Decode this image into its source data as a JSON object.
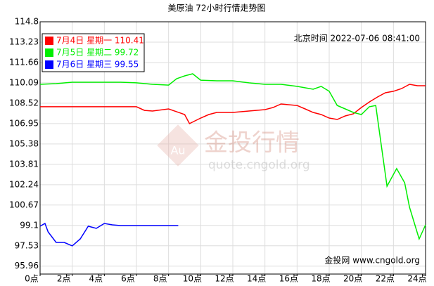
{
  "chart_data": {
    "type": "line",
    "title": "美原油 72小时行情走势图",
    "subtitle": "北京时间 2022-07-06 08:41:00",
    "footer": "金投网 www.cngold.org",
    "watermark": {
      "icon": "Au",
      "name": "金投行情",
      "site": "quote.cngold.org"
    },
    "xlim": [
      0,
      24
    ],
    "xticks": [
      {
        "value": 0,
        "label": "0点"
      },
      {
        "value": 2,
        "label": "2点"
      },
      {
        "value": 4,
        "label": "4点"
      },
      {
        "value": 6,
        "label": "6点"
      },
      {
        "value": 8,
        "label": "8点"
      },
      {
        "value": 10,
        "label": "10点"
      },
      {
        "value": 12,
        "label": "12点"
      },
      {
        "value": 14,
        "label": "14点"
      },
      {
        "value": 16,
        "label": "16点"
      },
      {
        "value": 18,
        "label": "18点"
      },
      {
        "value": 20,
        "label": "20点"
      },
      {
        "value": 22,
        "label": "22点"
      },
      {
        "value": 24,
        "label": "24点"
      }
    ],
    "ylim": [
      95.35,
      114.8
    ],
    "yticks": [
      114.8,
      113.23,
      111.66,
      110.09,
      108.52,
      106.95,
      105.38,
      103.81,
      102.24,
      100.67,
      99.1,
      97.53,
      95.96
    ],
    "grid": true,
    "legend": "top-left",
    "series": [
      {
        "name": "7月4日 星期一 110.41",
        "color": "#ff0000",
        "x": [
          0,
          6,
          6.5,
          7,
          8,
          9,
          9.3,
          10,
          10.5,
          11,
          12,
          13,
          14,
          14.5,
          15,
          16,
          16.5,
          17,
          17.5,
          18,
          18.5,
          19,
          19.5,
          20,
          20.5,
          21,
          21.5,
          22,
          22.5,
          23,
          23.5,
          24
        ],
        "values": [
          108.25,
          108.25,
          107.97,
          107.92,
          108.08,
          107.65,
          106.95,
          107.38,
          107.65,
          107.81,
          107.81,
          107.92,
          108.03,
          108.19,
          108.46,
          108.35,
          108.08,
          107.81,
          107.65,
          107.38,
          107.27,
          107.54,
          107.7,
          108.19,
          108.62,
          109.0,
          109.33,
          109.44,
          109.65,
          109.98,
          109.87,
          109.87
        ]
      },
      {
        "name": "7月5日 星期二 99.72",
        "color": "#00ee00",
        "x": [
          0,
          1,
          2,
          3,
          4,
          5,
          6,
          7,
          8,
          8.5,
          9,
          9.5,
          10,
          11,
          12,
          13,
          14,
          15,
          16,
          17,
          17.5,
          18,
          18.5,
          19,
          19.5,
          20,
          20.5,
          20.9,
          21.2,
          21.6,
          22.2,
          22.7,
          23,
          23.6,
          24
        ],
        "values": [
          109.98,
          110.03,
          110.14,
          110.14,
          110.14,
          110.14,
          110.09,
          109.98,
          109.92,
          110.41,
          110.63,
          110.79,
          110.3,
          110.25,
          110.25,
          110.09,
          109.98,
          109.98,
          109.82,
          109.6,
          109.82,
          109.44,
          108.35,
          108.08,
          107.81,
          107.65,
          108.25,
          108.35,
          105.65,
          102.12,
          103.48,
          102.39,
          100.5,
          98.06,
          99.14
        ]
      },
      {
        "name": "7月6日 星期三 99.55",
        "color": "#0000ff",
        "x": [
          0,
          0.3,
          0.5,
          1,
          1.5,
          2,
          2.5,
          3,
          3.5,
          4,
          4.5,
          5,
          6,
          7,
          8,
          8.6
        ],
        "values": [
          99.04,
          99.25,
          98.6,
          97.79,
          97.79,
          97.52,
          98.06,
          99.04,
          98.87,
          99.25,
          99.14,
          99.09,
          99.09,
          99.09,
          99.09,
          99.09
        ]
      }
    ]
  }
}
